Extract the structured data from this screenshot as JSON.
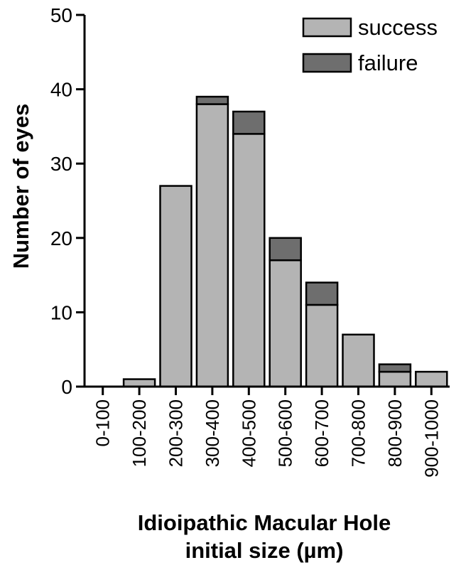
{
  "chart_data": {
    "type": "bar",
    "stacked": true,
    "xlabel": "Idioipathic Macular Hole",
    "xlabel_line2": "initial size (µm)",
    "ylabel": "Number of eyes",
    "ylim": [
      0,
      50
    ],
    "yticks": [
      0,
      10,
      20,
      30,
      40,
      50
    ],
    "categories": [
      "0-100",
      "100-200",
      "200-300",
      "300-400",
      "400-500",
      "500-600",
      "600-700",
      "700-800",
      "800-900",
      "900-1000"
    ],
    "series": [
      {
        "name": "success",
        "color": "#b4b4b4",
        "values": [
          0,
          1,
          27,
          38,
          34,
          17,
          11,
          7,
          2,
          2
        ]
      },
      {
        "name": "failure",
        "color": "#6e6e6e",
        "values": [
          0,
          0,
          0,
          1,
          3,
          3,
          3,
          0,
          1,
          0
        ]
      }
    ],
    "legend_position": "top-right",
    "grid": false
  }
}
